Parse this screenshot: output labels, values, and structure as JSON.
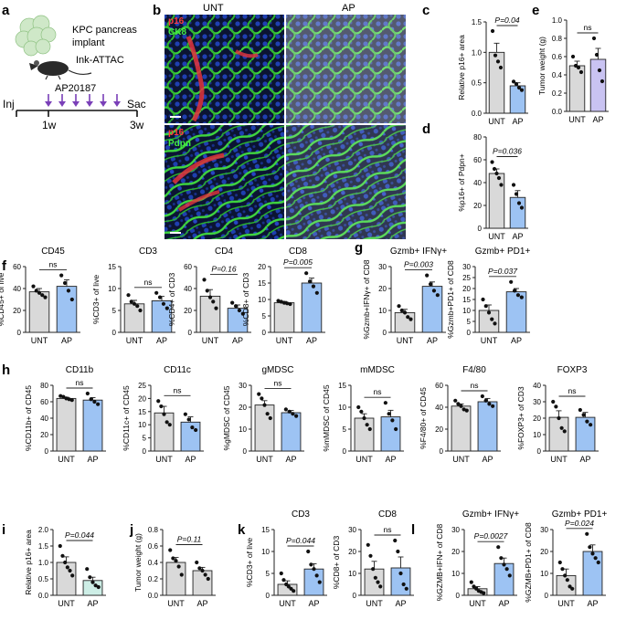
{
  "colors": {
    "unt_fill": "#d9d9d9",
    "ap_fill": "#9dc3f3",
    "ap_fill_teal": "#cdeee6",
    "axis": "#222222",
    "dot": "#111111"
  },
  "panel_a": {
    "letter": "a",
    "implant_line1": "KPC pancreas",
    "implant_line2": "implant",
    "mouse_label": "Ink-ATTAC",
    "drug_label": "AP20187",
    "inj_label": "Inj",
    "sac_label": "Sac",
    "week1_label": "1w",
    "week3_label": "3w"
  },
  "panel_b": {
    "letter": "b",
    "col_unt": "UNT",
    "col_ap": "AP",
    "top_stain_red": "p16",
    "top_stain_green": "CK8",
    "bottom_stain_red": "p16",
    "bottom_stain_green": "Pdpn"
  },
  "chart_data": [
    {
      "id": "c",
      "letter": "c",
      "type": "bar",
      "title": "",
      "ylabel": "Relative p16+ area",
      "categories": [
        "UNT",
        "AP"
      ],
      "values": [
        1.0,
        0.45
      ],
      "errors": [
        0.15,
        0.05
      ],
      "ylim": [
        0,
        1.5
      ],
      "yticks": [
        "0.0",
        "0.5",
        "1.0",
        "1.5"
      ],
      "yvals": [
        0,
        0.5,
        1.0,
        1.5
      ],
      "points": [
        [
          1.35,
          0.95,
          0.85,
          0.75
        ],
        [
          0.52,
          0.48,
          0.42,
          0.38
        ]
      ],
      "pvalue": "P=0.04",
      "ap_color": "blue"
    },
    {
      "id": "d",
      "letter": "d",
      "type": "bar",
      "title": "",
      "ylabel": "%p16+ of Pdpn+",
      "categories": [
        "UNT",
        "AP"
      ],
      "values": [
        48,
        27
      ],
      "errors": [
        4,
        6
      ],
      "ylim": [
        0,
        80
      ],
      "yticks": [
        "0",
        "20",
        "40",
        "60",
        "80"
      ],
      "yvals": [
        0,
        20,
        40,
        60,
        80
      ],
      "points": [
        [
          58,
          52,
          48,
          44,
          38
        ],
        [
          38,
          30,
          22,
          18
        ]
      ],
      "pvalue": "P=0.036",
      "ap_color": "blue"
    },
    {
      "id": "e",
      "letter": "e",
      "type": "bar",
      "title": "",
      "ylabel": "Tumor weight (g)",
      "categories": [
        "UNT",
        "AP"
      ],
      "values": [
        0.5,
        0.57
      ],
      "errors": [
        0.05,
        0.12
      ],
      "ylim": [
        0,
        1.0
      ],
      "yticks": [
        "0.0",
        "0.2",
        "0.4",
        "0.6",
        "0.8",
        "1.0"
      ],
      "yvals": [
        0,
        0.2,
        0.4,
        0.6,
        0.8,
        1.0
      ],
      "points": [
        [
          0.6,
          0.5,
          0.48,
          0.43
        ],
        [
          0.8,
          0.62,
          0.45,
          0.33
        ]
      ],
      "pvalue": "ns",
      "ap_color": "lavender"
    },
    {
      "id": "f1",
      "letter": "f",
      "type": "bar",
      "title": "CD45",
      "ylabel": "%CD45+ of live",
      "categories": [
        "UNT",
        "AP"
      ],
      "values": [
        37,
        42
      ],
      "errors": [
        3,
        6
      ],
      "ylim": [
        0,
        60
      ],
      "yticks": [
        "0",
        "20",
        "40",
        "60"
      ],
      "yvals": [
        0,
        20,
        40,
        60
      ],
      "points": [
        [
          42,
          38,
          36,
          34,
          32
        ],
        [
          52,
          45,
          38,
          30
        ]
      ],
      "pvalue": "ns",
      "ap_color": "blue"
    },
    {
      "id": "f2",
      "letter": "",
      "type": "bar",
      "title": "CD3",
      "ylabel": "%CD3+ of live",
      "categories": [
        "UNT",
        "AP"
      ],
      "values": [
        6.5,
        7.2
      ],
      "errors": [
        0.8,
        1.0
      ],
      "ylim": [
        0,
        15
      ],
      "yticks": [
        "0",
        "5",
        "10",
        "15"
      ],
      "yvals": [
        0,
        5,
        10,
        15
      ],
      "points": [
        [
          8.5,
          7,
          6.5,
          6,
          5
        ],
        [
          9,
          8,
          6.5,
          5.5
        ]
      ],
      "pvalue": "ns",
      "ap_color": "blue"
    },
    {
      "id": "f3",
      "letter": "",
      "type": "bar",
      "title": "CD4",
      "ylabel": "%CD4+ of CD3",
      "categories": [
        "UNT",
        "AP"
      ],
      "values": [
        33,
        22
      ],
      "errors": [
        6,
        3
      ],
      "ylim": [
        0,
        60
      ],
      "yticks": [
        "0",
        "20",
        "40",
        "60"
      ],
      "yvals": [
        0,
        20,
        40,
        60
      ],
      "points": [
        [
          48,
          38,
          32,
          28,
          22
        ],
        [
          27,
          24,
          20,
          17
        ]
      ],
      "pvalue": "P=0.16",
      "ap_color": "blue"
    },
    {
      "id": "f4",
      "letter": "",
      "type": "bar",
      "title": "CD8",
      "ylabel": "%CD8+ of CD3",
      "categories": [
        "UNT",
        "AP"
      ],
      "values": [
        9,
        15
      ],
      "errors": [
        0.4,
        1.5
      ],
      "ylim": [
        0,
        20
      ],
      "yticks": [
        "0",
        "5",
        "10",
        "15",
        "20"
      ],
      "yvals": [
        0,
        5,
        10,
        15,
        20
      ],
      "points": [
        [
          9.6,
          9.3,
          9,
          8.8,
          8.6
        ],
        [
          18,
          15.5,
          14,
          12
        ]
      ],
      "pvalue": "P=0.005",
      "ap_color": "blue"
    },
    {
      "id": "g1",
      "letter": "g",
      "type": "bar",
      "title": "Gzmb+ IFNγ+",
      "ylabel": "%Gzmb+IFNγ+ of CD8",
      "categories": [
        "UNT",
        "AP"
      ],
      "values": [
        9,
        21
      ],
      "errors": [
        1.5,
        2
      ],
      "ylim": [
        0,
        30
      ],
      "yticks": [
        "0",
        "10",
        "20",
        "30"
      ],
      "yvals": [
        0,
        10,
        20,
        30
      ],
      "points": [
        [
          12,
          10,
          9,
          7,
          6
        ],
        [
          26,
          22,
          19,
          17
        ]
      ],
      "pvalue": "P=0.003",
      "ap_color": "blue"
    },
    {
      "id": "g2",
      "letter": "",
      "type": "bar",
      "title": "Gzmb+ PD1+",
      "ylabel": "%Gzmb+PD1+ of CD8",
      "categories": [
        "UNT",
        "AP"
      ],
      "values": [
        10,
        18.5
      ],
      "errors": [
        2.5,
        1.5
      ],
      "ylim": [
        0,
        30
      ],
      "yticks": [
        "0",
        "5",
        "10",
        "15",
        "20",
        "25",
        "30"
      ],
      "yvals": [
        0,
        5,
        10,
        15,
        20,
        25,
        30
      ],
      "points": [
        [
          15,
          12,
          9,
          6,
          4
        ],
        [
          23,
          19,
          17,
          16
        ]
      ],
      "pvalue": "P=0.037",
      "ap_color": "blue"
    },
    {
      "id": "h1",
      "letter": "h",
      "type": "bar",
      "title": "CD11b",
      "ylabel": "%CD11b+ of CD45",
      "categories": [
        "UNT",
        "AP"
      ],
      "values": [
        64,
        62
      ],
      "errors": [
        1.5,
        3
      ],
      "ylim": [
        0,
        80
      ],
      "yticks": [
        "0",
        "20",
        "40",
        "60",
        "80"
      ],
      "yvals": [
        0,
        20,
        40,
        60,
        80
      ],
      "points": [
        [
          67,
          66,
          64,
          63,
          62
        ],
        [
          70,
          63,
          60,
          57
        ]
      ],
      "pvalue": "ns",
      "ap_color": "blue"
    },
    {
      "id": "h2",
      "letter": "",
      "type": "bar",
      "title": "CD11c",
      "ylabel": "%CD11c+ of CD45",
      "categories": [
        "UNT",
        "AP"
      ],
      "values": [
        14.5,
        11
      ],
      "errors": [
        2.5,
        2
      ],
      "ylim": [
        0,
        25
      ],
      "yticks": [
        "0",
        "5",
        "10",
        "15",
        "20",
        "25"
      ],
      "yvals": [
        0,
        5,
        10,
        15,
        20,
        25
      ],
      "points": [
        [
          19,
          17,
          14,
          11,
          10
        ],
        [
          14,
          12,
          9,
          8
        ]
      ],
      "pvalue": "ns",
      "ap_color": "blue"
    },
    {
      "id": "h3",
      "letter": "",
      "type": "bar",
      "title": "gMDSC",
      "ylabel": "%gMDSC of CD45",
      "categories": [
        "UNT",
        "AP"
      ],
      "values": [
        21,
        17.5
      ],
      "errors": [
        2,
        1
      ],
      "ylim": [
        0,
        30
      ],
      "yticks": [
        "0",
        "10",
        "20",
        "30"
      ],
      "yvals": [
        0,
        10,
        20,
        30
      ],
      "points": [
        [
          26,
          24,
          21,
          17,
          15
        ],
        [
          19,
          18,
          17,
          16
        ]
      ],
      "pvalue": "ns",
      "ap_color": "blue"
    },
    {
      "id": "h4",
      "letter": "",
      "type": "bar",
      "title": "mMDSC",
      "ylabel": "%mMDSC of CD45",
      "categories": [
        "UNT",
        "AP"
      ],
      "values": [
        7.5,
        7.8
      ],
      "errors": [
        1,
        1.5
      ],
      "ylim": [
        0,
        15
      ],
      "yticks": [
        "0",
        "5",
        "10",
        "15"
      ],
      "yvals": [
        0,
        5,
        10,
        15
      ],
      "points": [
        [
          10,
          9,
          7.5,
          6,
          5
        ],
        [
          11,
          8.5,
          7,
          5
        ]
      ],
      "pvalue": "ns",
      "ap_color": "blue"
    },
    {
      "id": "h5",
      "letter": "",
      "type": "bar",
      "title": "F4/80",
      "ylabel": "%F4/80+ of CD45",
      "categories": [
        "UNT",
        "AP"
      ],
      "values": [
        41,
        45
      ],
      "errors": [
        2,
        3
      ],
      "ylim": [
        0,
        60
      ],
      "yticks": [
        "0",
        "20",
        "40",
        "60"
      ],
      "yvals": [
        0,
        20,
        40,
        60
      ],
      "points": [
        [
          46,
          43,
          41,
          38,
          37
        ],
        [
          50,
          46,
          43,
          41
        ]
      ],
      "pvalue": "ns",
      "ap_color": "blue"
    },
    {
      "id": "h6",
      "letter": "",
      "type": "bar",
      "title": "FOXP3",
      "ylabel": "%FOXP3+ of CD3",
      "categories": [
        "UNT",
        "AP"
      ],
      "values": [
        20.5,
        20.5
      ],
      "errors": [
        4,
        3
      ],
      "ylim": [
        0,
        40
      ],
      "yticks": [
        "0",
        "10",
        "20",
        "30",
        "40"
      ],
      "yvals": [
        0,
        10,
        20,
        30,
        40
      ],
      "points": [
        [
          30,
          27,
          20,
          14,
          12
        ],
        [
          25,
          22,
          18,
          16
        ]
      ],
      "pvalue": "ns",
      "ap_color": "blue"
    },
    {
      "id": "i",
      "letter": "i",
      "type": "bar",
      "title": "",
      "ylabel": "Relative p16+ area",
      "categories": [
        "UNT",
        "AP"
      ],
      "values": [
        1.0,
        0.45
      ],
      "errors": [
        0.17,
        0.1
      ],
      "ylim": [
        0,
        2.0
      ],
      "yticks": [
        "0.0",
        "0.5",
        "1.0",
        "1.5",
        "2.0"
      ],
      "yvals": [
        0,
        0.5,
        1.0,
        1.5,
        2.0
      ],
      "points": [
        [
          1.5,
          1.2,
          1.0,
          0.85,
          0.75,
          0.6
        ],
        [
          0.8,
          0.55,
          0.4,
          0.3,
          0.25
        ]
      ],
      "pvalue": "P=0.044",
      "ap_color": "teal"
    },
    {
      "id": "j",
      "letter": "j",
      "type": "bar",
      "title": "",
      "ylabel": "Tumor weight (g)",
      "categories": [
        "UNT",
        "AP"
      ],
      "values": [
        0.4,
        0.3
      ],
      "errors": [
        0.06,
        0.04
      ],
      "ylim": [
        0,
        0.8
      ],
      "yticks": [
        "0.0",
        "0.2",
        "0.4",
        "0.6",
        "0.8"
      ],
      "yvals": [
        0,
        0.2,
        0.4,
        0.6,
        0.8
      ],
      "points": [
        [
          0.55,
          0.45,
          0.42,
          0.35,
          0.25
        ],
        [
          0.4,
          0.33,
          0.3,
          0.25,
          0.2
        ]
      ],
      "pvalue": "P=0.11",
      "ap_color": "grey"
    },
    {
      "id": "k1",
      "letter": "k",
      "type": "bar",
      "title": "CD3",
      "ylabel": "%CD3+ of live",
      "categories": [
        "UNT",
        "AP"
      ],
      "values": [
        2.5,
        6
      ],
      "errors": [
        0.8,
        1.2
      ],
      "ylim": [
        0,
        15
      ],
      "yticks": [
        "0",
        "5",
        "10",
        "15"
      ],
      "yvals": [
        0,
        5,
        10,
        15
      ],
      "points": [
        [
          5,
          3.5,
          2.5,
          2,
          1.5,
          1
        ],
        [
          10,
          7,
          6,
          4.5,
          3
        ]
      ],
      "pvalue": "P=0.044",
      "ap_color": "blue"
    },
    {
      "id": "k2",
      "letter": "",
      "type": "bar",
      "title": "CD8",
      "ylabel": "%CD8+ of CD3",
      "categories": [
        "UNT",
        "AP"
      ],
      "values": [
        12,
        12.5
      ],
      "errors": [
        3.5,
        5
      ],
      "ylim": [
        0,
        30
      ],
      "yticks": [
        "0",
        "10",
        "20",
        "30"
      ],
      "yvals": [
        0,
        10,
        20,
        30
      ],
      "points": [
        [
          23,
          18,
          12,
          8,
          6,
          4
        ],
        [
          25,
          20,
          10,
          5,
          3
        ]
      ],
      "pvalue": "ns",
      "ap_color": "blue"
    },
    {
      "id": "l1",
      "letter": "l",
      "type": "bar",
      "title": "Gzmb+ IFNγ+",
      "ylabel": "%GZMB+IFN+ of CD8",
      "categories": [
        "UNT",
        "AP"
      ],
      "values": [
        3,
        14.5
      ],
      "errors": [
        1,
        2.5
      ],
      "ylim": [
        0,
        30
      ],
      "yticks": [
        "0",
        "10",
        "20",
        "30"
      ],
      "yvals": [
        0,
        10,
        20,
        30
      ],
      "points": [
        [
          6,
          4,
          3,
          2,
          1.5,
          1
        ],
        [
          22,
          17,
          14,
          12,
          9
        ]
      ],
      "pvalue": "P=0.0027",
      "ap_color": "blue"
    },
    {
      "id": "l2",
      "letter": "",
      "type": "bar",
      "title": "Gzmb+ PD1+",
      "ylabel": "%GZMB+PD1+ of CD8",
      "categories": [
        "UNT",
        "AP"
      ],
      "values": [
        9,
        20
      ],
      "errors": [
        3,
        3
      ],
      "ylim": [
        0,
        30
      ],
      "yticks": [
        "0",
        "10",
        "20",
        "30"
      ],
      "yvals": [
        0,
        10,
        20,
        30
      ],
      "points": [
        [
          15,
          12,
          9,
          7,
          4,
          3
        ],
        [
          28,
          22,
          19,
          17,
          15
        ]
      ],
      "pvalue": "P=0.024",
      "ap_color": "blue"
    }
  ]
}
